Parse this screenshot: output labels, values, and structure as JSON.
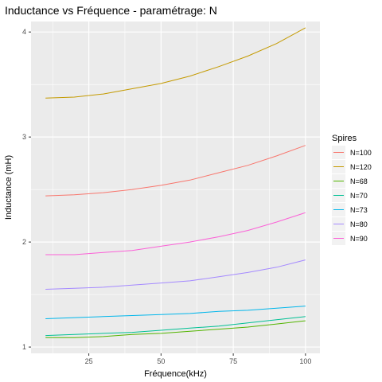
{
  "chart_data": {
    "type": "line",
    "title": "Inductance vs Fréquence - paramétrage: N",
    "xlabel": "Fréquence(kHz)",
    "ylabel": "Inductance (mH)",
    "xlim": [
      5,
      105
    ],
    "ylim": [
      0.94,
      4.1
    ],
    "x_ticks": [
      25,
      50,
      75,
      100
    ],
    "y_ticks": [
      1,
      2,
      3,
      4
    ],
    "x_tick_labels": [
      "25",
      "50",
      "75",
      "100"
    ],
    "y_tick_labels": [
      "1",
      "2",
      "3",
      "4"
    ],
    "grid": true,
    "legend": {
      "title": "Spires",
      "position": "right"
    },
    "x": [
      10,
      20,
      30,
      40,
      50,
      60,
      70,
      80,
      90,
      100
    ],
    "series": [
      {
        "name": "N=100",
        "color": "#F8766D",
        "values": [
          2.44,
          2.45,
          2.47,
          2.5,
          2.54,
          2.59,
          2.66,
          2.73,
          2.82,
          2.92
        ]
      },
      {
        "name": "N=120",
        "color": "#C49A00",
        "values": [
          3.37,
          3.38,
          3.41,
          3.46,
          3.51,
          3.58,
          3.67,
          3.77,
          3.89,
          4.04
        ]
      },
      {
        "name": "N=68",
        "color": "#53B400",
        "values": [
          1.09,
          1.09,
          1.1,
          1.12,
          1.13,
          1.15,
          1.17,
          1.19,
          1.22,
          1.25
        ]
      },
      {
        "name": "N=70",
        "color": "#00C094",
        "values": [
          1.11,
          1.12,
          1.13,
          1.14,
          1.16,
          1.18,
          1.2,
          1.23,
          1.26,
          1.29
        ]
      },
      {
        "name": "N=73",
        "color": "#00B6EB",
        "values": [
          1.27,
          1.28,
          1.29,
          1.3,
          1.31,
          1.32,
          1.34,
          1.35,
          1.37,
          1.39
        ]
      },
      {
        "name": "N=80",
        "color": "#A58AFF",
        "values": [
          1.55,
          1.56,
          1.57,
          1.59,
          1.61,
          1.63,
          1.67,
          1.71,
          1.76,
          1.83
        ]
      },
      {
        "name": "N=90",
        "color": "#FB61D7",
        "values": [
          1.88,
          1.88,
          1.9,
          1.92,
          1.96,
          2.0,
          2.05,
          2.11,
          2.19,
          2.28
        ]
      }
    ]
  }
}
